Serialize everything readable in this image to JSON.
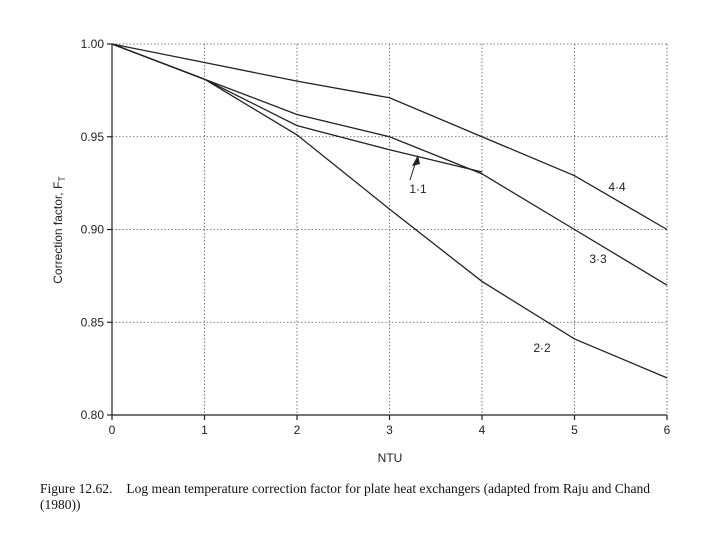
{
  "chart_data": {
    "type": "line",
    "x_label": "NTU",
    "y_label": "Correction factor, F",
    "y_label_subscript": "T",
    "xlim": [
      0,
      6
    ],
    "xticks": [
      0,
      1,
      2,
      3,
      4,
      5,
      6
    ],
    "ylim": [
      0.8,
      1.0
    ],
    "yticks": [
      {
        "value": 0.8,
        "label": "0.80"
      },
      0.85,
      {
        "value": 0.9,
        "label": "0.90"
      },
      0.95,
      {
        "value": 1.0,
        "label": "1.00"
      }
    ],
    "grid": true,
    "series": [
      {
        "name": "4·4",
        "color": "#222222",
        "x": [
          0,
          1,
          2,
          3,
          4,
          5,
          6
        ],
        "values": [
          1.0,
          0.99,
          0.98,
          0.971,
          0.95,
          0.929,
          0.9
        ]
      },
      {
        "name": "3·3",
        "color": "#222222",
        "x": [
          0,
          1,
          2,
          3,
          4,
          5,
          6
        ],
        "values": [
          1.0,
          0.981,
          0.962,
          0.95,
          0.93,
          0.9,
          0.87
        ]
      },
      {
        "name": "1·1",
        "color": "#222222",
        "x": [
          0,
          1,
          2,
          3,
          4
        ],
        "values": [
          1.0,
          0.981,
          0.956,
          0.943,
          0.931
        ]
      },
      {
        "name": "2·2",
        "color": "#222222",
        "x": [
          0,
          1,
          2,
          3,
          4,
          5,
          6
        ],
        "values": [
          1.0,
          0.981,
          0.951,
          0.911,
          0.872,
          0.841,
          0.82
        ]
      }
    ]
  },
  "caption": {
    "label": "Figure 12.62.",
    "text": "Log mean temperature correction factor for plate heat exchangers (adapted from Raju and Chand (1980))"
  }
}
